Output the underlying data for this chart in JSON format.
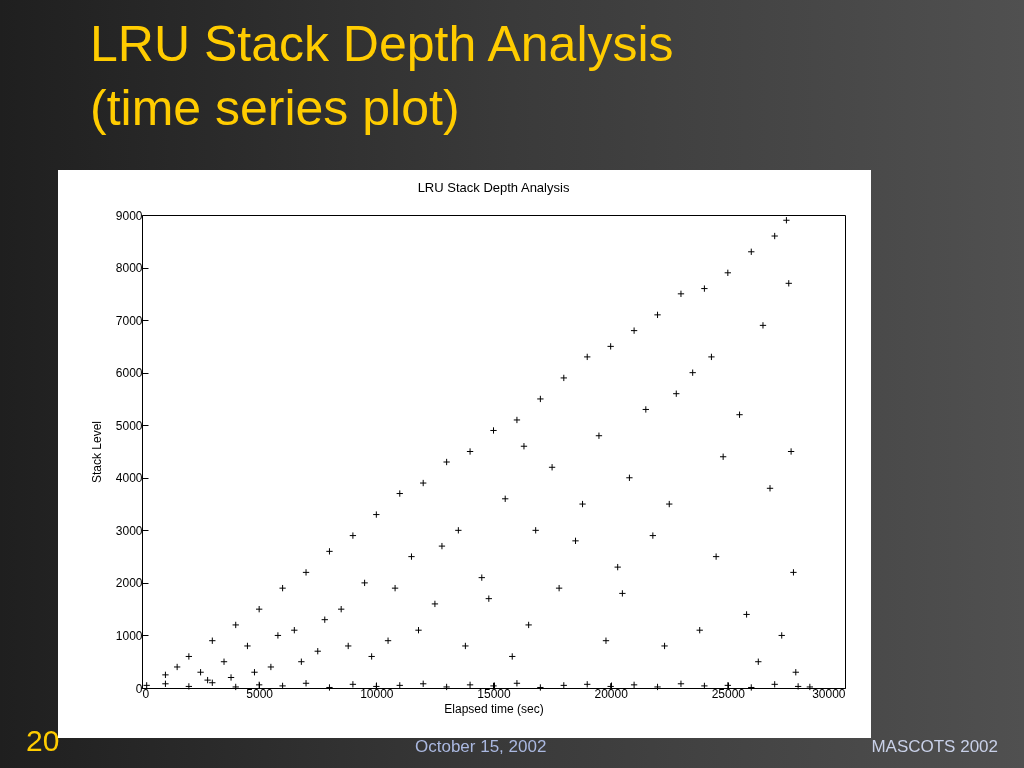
{
  "chart_data": {
    "type": "scatter",
    "title": "LRU Stack Depth Analysis (time series plot)",
    "subtitle": "LRU Stack Depth Analysis",
    "xlabel": "Elapsed time (sec)",
    "ylabel": "Stack Level",
    "annotations": [
      "20",
      "October 15, 2002",
      "MASCOTS 2002"
    ],
    "xlim": [
      0,
      30000
    ],
    "xticks": [
      0,
      5000,
      10000,
      15000,
      20000,
      25000,
      30000
    ],
    "ylim": [
      0,
      9000
    ],
    "yticks": [
      0,
      1000,
      2000,
      3000,
      4000,
      5000,
      6000,
      7000,
      8000,
      9000
    ],
    "grid": false,
    "marker": "cross",
    "series": [
      {
        "color": "#000000",
        "x": [
          200,
          1000,
          2000,
          3000,
          4000,
          5000,
          6000,
          7000,
          8000,
          9000,
          10000,
          11000,
          12000,
          13000,
          14000,
          15000,
          16000,
          17000,
          18000,
          19000,
          20000,
          21000,
          22000,
          23000,
          24000,
          25000,
          26000,
          27000,
          28000,
          28500,
          1000,
          1500,
          2000,
          2500,
          3000,
          3500,
          4000,
          4500,
          5000,
          5500,
          6000,
          6500,
          7000,
          7500,
          8000,
          8500,
          9000,
          9500,
          10000,
          10500,
          11000,
          11500,
          12000,
          12500,
          13000,
          13500,
          14000,
          14500,
          15000,
          15500,
          16000,
          16500,
          17000,
          17500,
          18000,
          18500,
          19000,
          19500,
          20000,
          20500,
          21000,
          21500,
          22000,
          22500,
          23000,
          23500,
          24000,
          24500,
          25000,
          25500,
          26000,
          26500,
          27000,
          27500,
          27600,
          27700,
          27800,
          26800,
          25800,
          24800,
          23800,
          22800,
          21800,
          20800,
          19800,
          18800,
          17800,
          16800,
          15800,
          14800,
          13800,
          12800,
          11800,
          10800,
          9800,
          8800,
          7800,
          6800,
          5800,
          4800,
          3800,
          2800,
          26300,
          27300,
          27900,
          20300,
          16300,
          24300,
          22300
        ],
        "values": [
          50,
          80,
          30,
          100,
          20,
          60,
          40,
          90,
          10,
          70,
          30,
          50,
          80,
          20,
          60,
          40,
          90,
          10,
          50,
          70,
          30,
          60,
          20,
          80,
          40,
          50,
          10,
          70,
          30,
          20,
          250,
          400,
          600,
          300,
          900,
          500,
          1200,
          800,
          1500,
          400,
          1900,
          1100,
          2200,
          700,
          2600,
          1500,
          2900,
          2000,
          3300,
          900,
          3700,
          2500,
          3900,
          1600,
          4300,
          3000,
          4500,
          2100,
          4900,
          3600,
          5100,
          1200,
          5500,
          4200,
          5900,
          2800,
          6300,
          4800,
          6500,
          1800,
          6800,
          5300,
          7100,
          3500,
          7500,
          6000,
          7600,
          2500,
          7900,
          5200,
          8300,
          6900,
          8600,
          8900,
          7700,
          4500,
          2200,
          3800,
          1400,
          4400,
          1100,
          5600,
          2900,
          4000,
          900,
          3500,
          1900,
          3000,
          600,
          1700,
          800,
          2700,
          1100,
          1900,
          600,
          800,
          1300,
          500,
          1000,
          300,
          200,
          150,
          500,
          1000,
          300,
          2300,
          4600,
          6300,
          800
        ]
      }
    ]
  }
}
